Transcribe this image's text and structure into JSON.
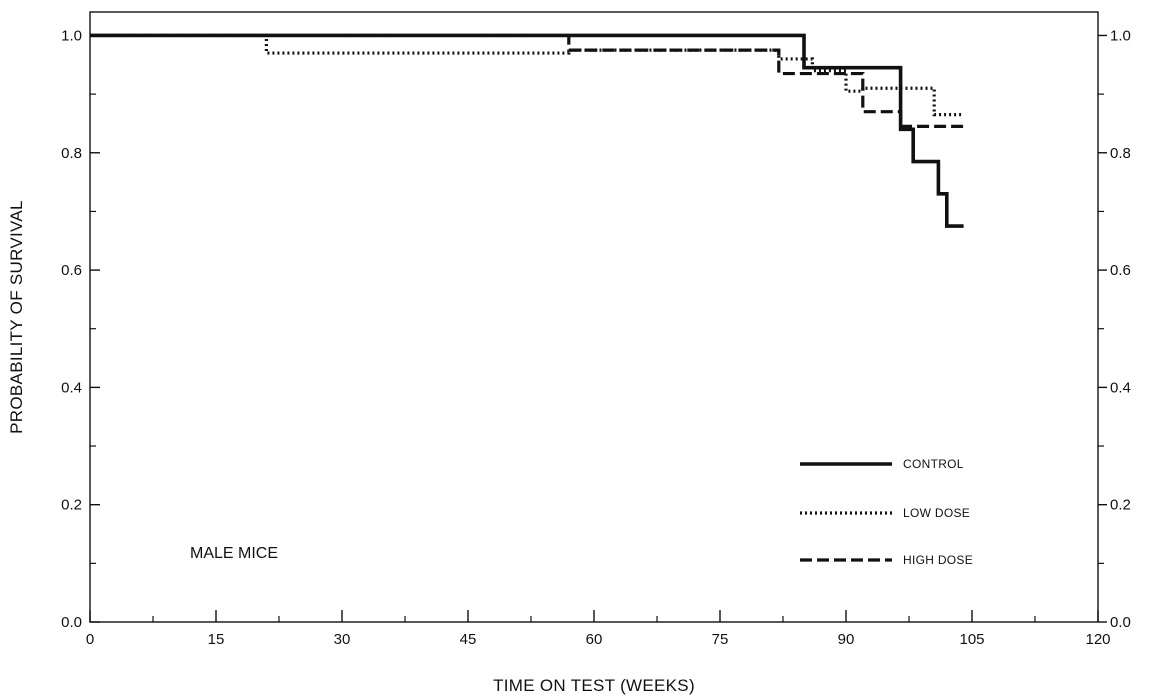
{
  "chart_data": {
    "type": "line",
    "step": true,
    "xlabel": "TIME ON TEST (WEEKS)",
    "ylabel": "PROBABILITY OF SURVIVAL",
    "xlim": [
      0,
      120
    ],
    "ylim": [
      0,
      1.04
    ],
    "xticks": [
      0,
      15,
      30,
      45,
      60,
      75,
      90,
      105,
      120
    ],
    "yticks": [
      0.0,
      0.2,
      0.4,
      0.6,
      0.8,
      1.0
    ],
    "ytick_labels": [
      "0.0",
      "0.2",
      "0.4",
      "0.6",
      "0.8",
      "1.0"
    ],
    "right_axis": true,
    "grid": false,
    "legend_position": "lower-right",
    "annotation": "MALE MICE",
    "series": [
      {
        "name": "CONTROL",
        "style": "solid",
        "x": [
          0,
          85,
          87,
          96.5,
          98,
          101,
          102,
          104
        ],
        "y": [
          1.0,
          0.945,
          0.945,
          0.84,
          0.785,
          0.73,
          0.675,
          0.675
        ]
      },
      {
        "name": "LOW DOSE",
        "style": "dotted",
        "x": [
          0,
          21,
          57,
          82,
          86,
          90,
          92,
          100.5,
          104
        ],
        "y": [
          1.0,
          0.97,
          0.975,
          0.96,
          0.94,
          0.905,
          0.91,
          0.865,
          0.865
        ]
      },
      {
        "name": "HIGH DOSE",
        "style": "dashed",
        "x": [
          0,
          57,
          82,
          92,
          96.5,
          104
        ],
        "y": [
          1.0,
          0.975,
          0.935,
          0.87,
          0.845,
          0.845
        ]
      }
    ]
  }
}
